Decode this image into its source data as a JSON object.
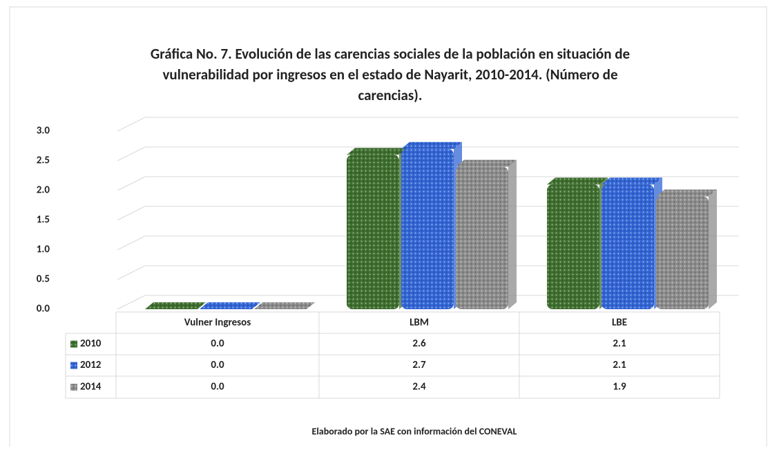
{
  "chart_data": {
    "type": "bar",
    "title": "Gráfica No. 7. Evolución de las carencias sociales de la población en situación de vulnerabilidad por ingresos en el estado de Nayarit, 2010-2014. (Número de carencias).",
    "categories": [
      "Vulner Ingresos",
      "LBM",
      "LBE"
    ],
    "series": [
      {
        "name": "2010",
        "color": "#3f6f2f",
        "values": [
          0.0,
          2.6,
          2.1
        ],
        "value_labels": [
          "0.0",
          "2.6",
          "2.1"
        ]
      },
      {
        "name": "2012",
        "color": "#3366d6",
        "values": [
          0.0,
          2.7,
          2.1
        ],
        "value_labels": [
          "0.0",
          "2.7",
          "2.1"
        ]
      },
      {
        "name": "2014",
        "color": "#8c8c8c",
        "values": [
          0.0,
          2.4,
          1.9
        ],
        "value_labels": [
          "0.0",
          "2.4",
          "1.9"
        ]
      }
    ],
    "ylim": [
      0,
      3
    ],
    "yticks": [
      {
        "value": 0,
        "label": "0.0"
      },
      {
        "value": 0.5,
        "label": "0.5"
      },
      {
        "value": 1,
        "label": "1.0"
      },
      {
        "value": 1.5,
        "label": "1.5"
      },
      {
        "value": 2,
        "label": "2.0"
      },
      {
        "value": 2.5,
        "label": "2.5"
      },
      {
        "value": 3,
        "label": "3.0"
      }
    ],
    "grid": true,
    "source": "Elaborado por la SAE con información del CONEVAL"
  }
}
